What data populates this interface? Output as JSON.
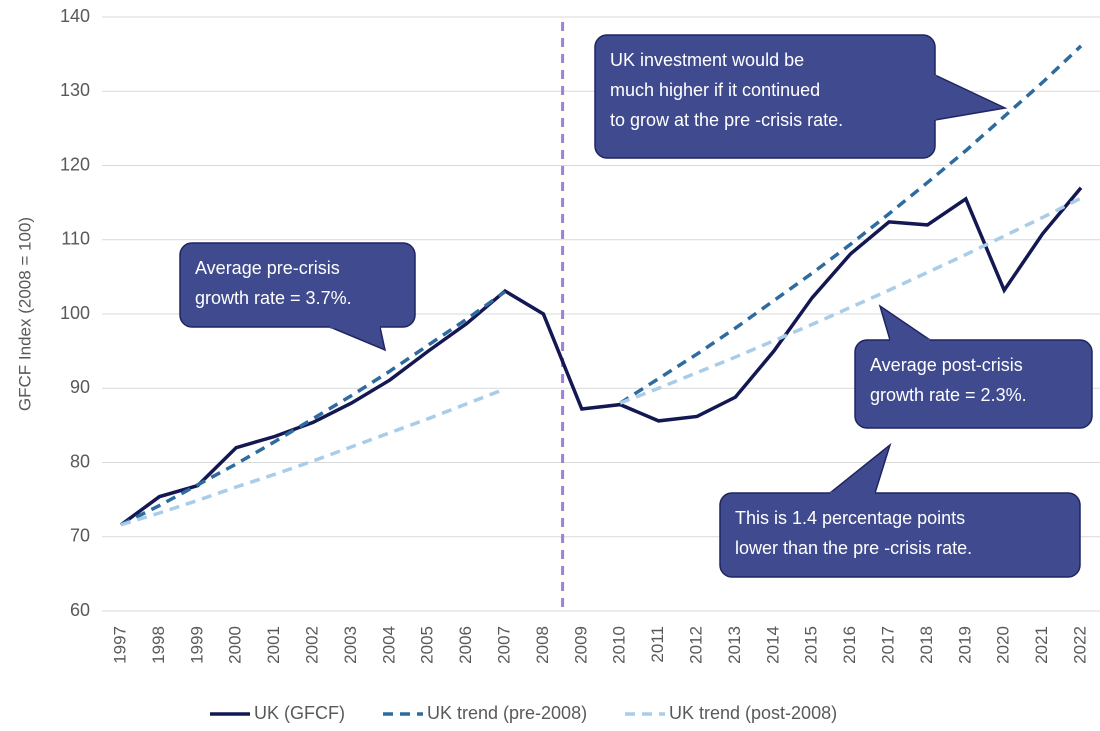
{
  "chart_data": {
    "type": "line",
    "y_label": "GFCF Index (2008 = 100)",
    "categories": [
      "1997",
      "1998",
      "1999",
      "2000",
      "2001",
      "2002",
      "2003",
      "2004",
      "2005",
      "2006",
      "2007",
      "2008",
      "2009",
      "2010",
      "2011",
      "2012",
      "2013",
      "2014",
      "2015",
      "2016",
      "2017",
      "2018",
      "2019",
      "2020",
      "2021",
      "2022"
    ],
    "series": [
      {
        "name": "UK (GFCF)",
        "color": "#141852",
        "dash": "solid",
        "values": [
          71.6,
          75.4,
          76.9,
          82.0,
          83.5,
          85.4,
          88.0,
          91.1,
          95.0,
          98.7,
          103.1,
          100.0,
          87.2,
          87.8,
          85.6,
          86.2,
          88.8,
          95.0,
          102.2,
          108.1,
          112.4,
          112.0,
          115.5,
          103.2,
          110.8,
          117.0
        ]
      },
      {
        "name": "UK trend (pre-2008)",
        "color": "#2e6b9e",
        "dash": "dashed",
        "values": [
          71.6,
          74.2,
          77.0,
          79.8,
          82.8,
          85.9,
          89.0,
          92.3,
          95.8,
          99.3,
          103.0,
          null,
          null,
          88.0,
          91.3,
          94.6,
          98.1,
          101.8,
          105.5,
          109.4,
          113.5,
          117.7,
          122.0,
          126.6,
          131.2,
          136.1
        ]
      },
      {
        "name": "UK trend (post-2008)",
        "color": "#a9cde8",
        "dash": "dashed",
        "values": [
          71.6,
          73.2,
          74.9,
          76.7,
          78.4,
          80.2,
          82.1,
          84.0,
          85.9,
          87.9,
          89.9,
          null,
          null,
          88.0,
          90.0,
          92.1,
          94.2,
          96.4,
          98.6,
          100.9,
          103.2,
          105.6,
          108.0,
          110.5,
          113.0,
          115.6
        ]
      }
    ],
    "ylim": [
      60,
      140
    ],
    "yticks": [
      60,
      70,
      80,
      90,
      100,
      110,
      120,
      130,
      140
    ],
    "grid": true,
    "legend": "bottom",
    "annotations": [
      {
        "lines": [
          "UK investment  would be",
          "much higher if it continued",
          "to grow at the pre -crisis rate."
        ]
      },
      {
        "lines": [
          "Average  pre-crisis",
          "growth rate = 3.7%."
        ]
      },
      {
        "lines": [
          "Average  post-crisis",
          "growth rate = 2.3%."
        ]
      },
      {
        "lines": [
          "This is 1.4 percentage points",
          "lower than the pre -crisis rate."
        ]
      }
    ]
  }
}
